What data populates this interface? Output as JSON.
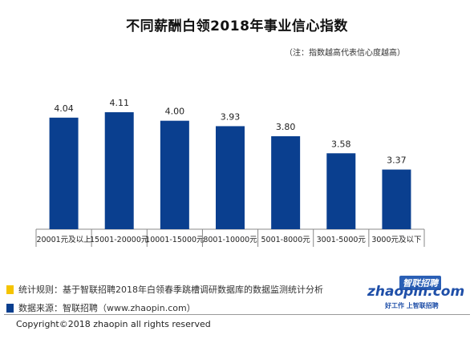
{
  "header": {
    "title": "不同薪酬白领2018年事业信心指数",
    "note": "（注：指数越高代表信心度越高）"
  },
  "chart_data": {
    "type": "bar",
    "categories": [
      "20001元及以上",
      "15001-20000元",
      "10001-15000元",
      "8001-10000元",
      "5001-8000元",
      "3001-5000元",
      "3000元及以下"
    ],
    "values": [
      4.04,
      4.11,
      4.0,
      3.93,
      3.8,
      3.58,
      3.37
    ],
    "value_labels": [
      "4.04",
      "4.11",
      "4.00",
      "3.93",
      "3.80",
      "3.58",
      "3.37"
    ],
    "ylim": [
      2.6,
      4.4
    ],
    "bar_color": "#0a3f8f",
    "grid": false,
    "title": "不同薪酬白领2018年事业信心指数",
    "xlabel": "",
    "ylabel": ""
  },
  "footer": {
    "rule_label": "统计规则：基于智联招聘2018年白领春季跳槽调研数据库的数据监测统计分析",
    "source_label": "数据来源：智联招聘（www.zhaopin.com）",
    "rule_color": "#f5c400",
    "source_color": "#0a3f8f",
    "copyright": "Copyright©2018 zhaopin all rights reserved"
  },
  "logo": {
    "cn_name": "智联招聘",
    "brand": "zhaopin.com",
    "slogan": "好工作  上智联招聘"
  }
}
